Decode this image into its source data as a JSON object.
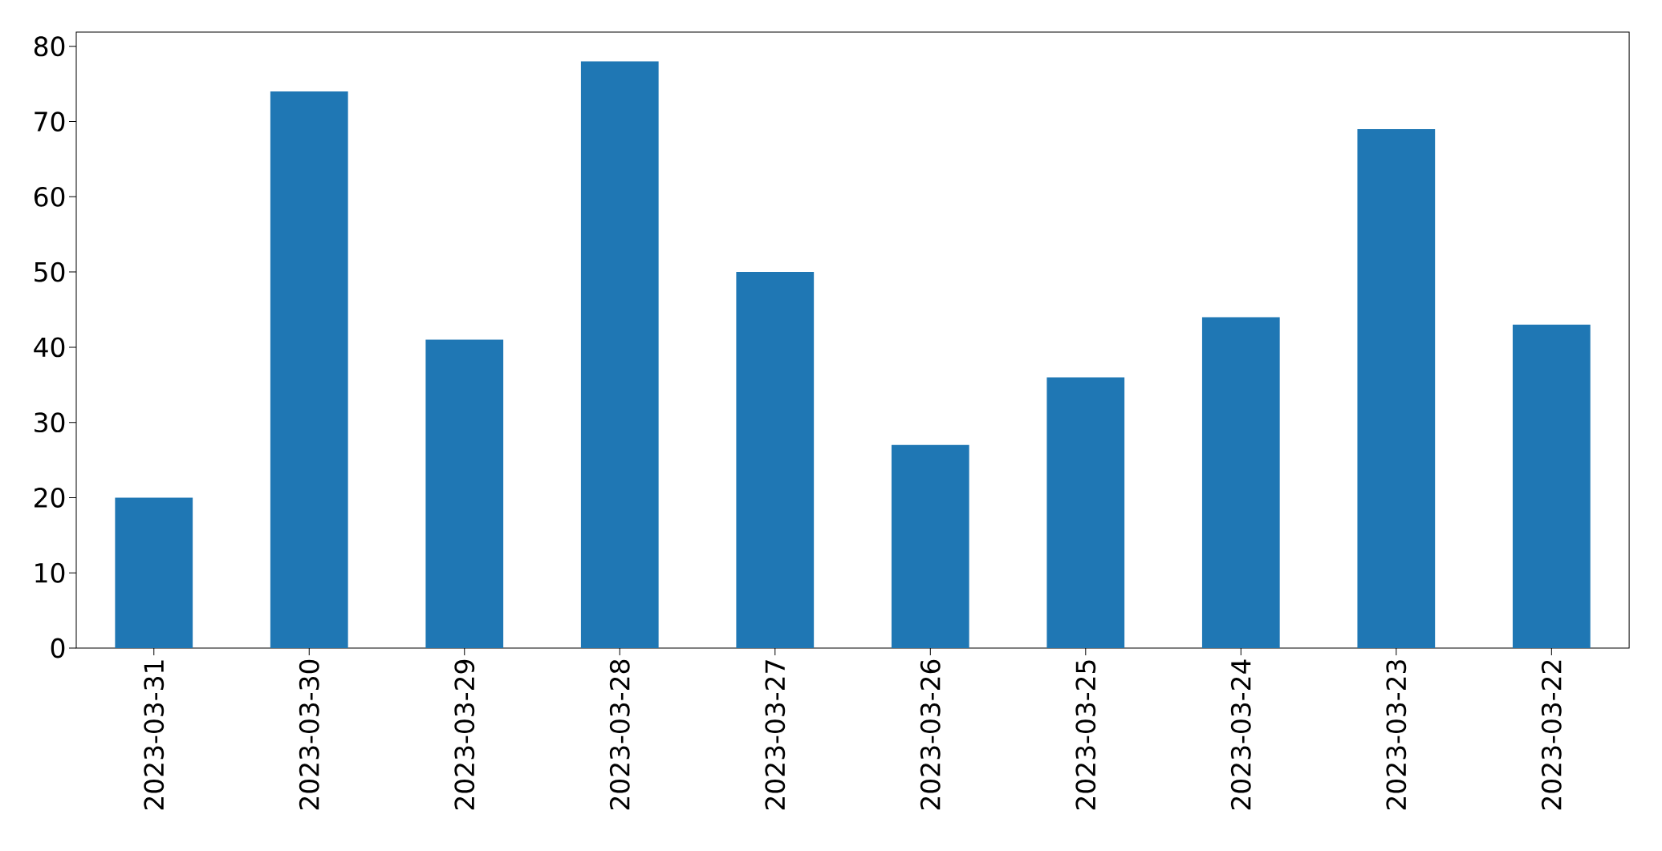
{
  "chart_data": {
    "type": "bar",
    "categories": [
      "2023-03-31",
      "2023-03-30",
      "2023-03-29",
      "2023-03-28",
      "2023-03-27",
      "2023-03-26",
      "2023-03-25",
      "2023-03-24",
      "2023-03-23",
      "2023-03-22"
    ],
    "values": [
      20,
      74,
      41,
      78,
      50,
      27,
      36,
      44,
      69,
      43
    ],
    "color": "#1f77b4",
    "ylim": [
      0,
      81.9
    ],
    "yticks": [
      0,
      10,
      20,
      30,
      40,
      50,
      60,
      70,
      80
    ]
  }
}
